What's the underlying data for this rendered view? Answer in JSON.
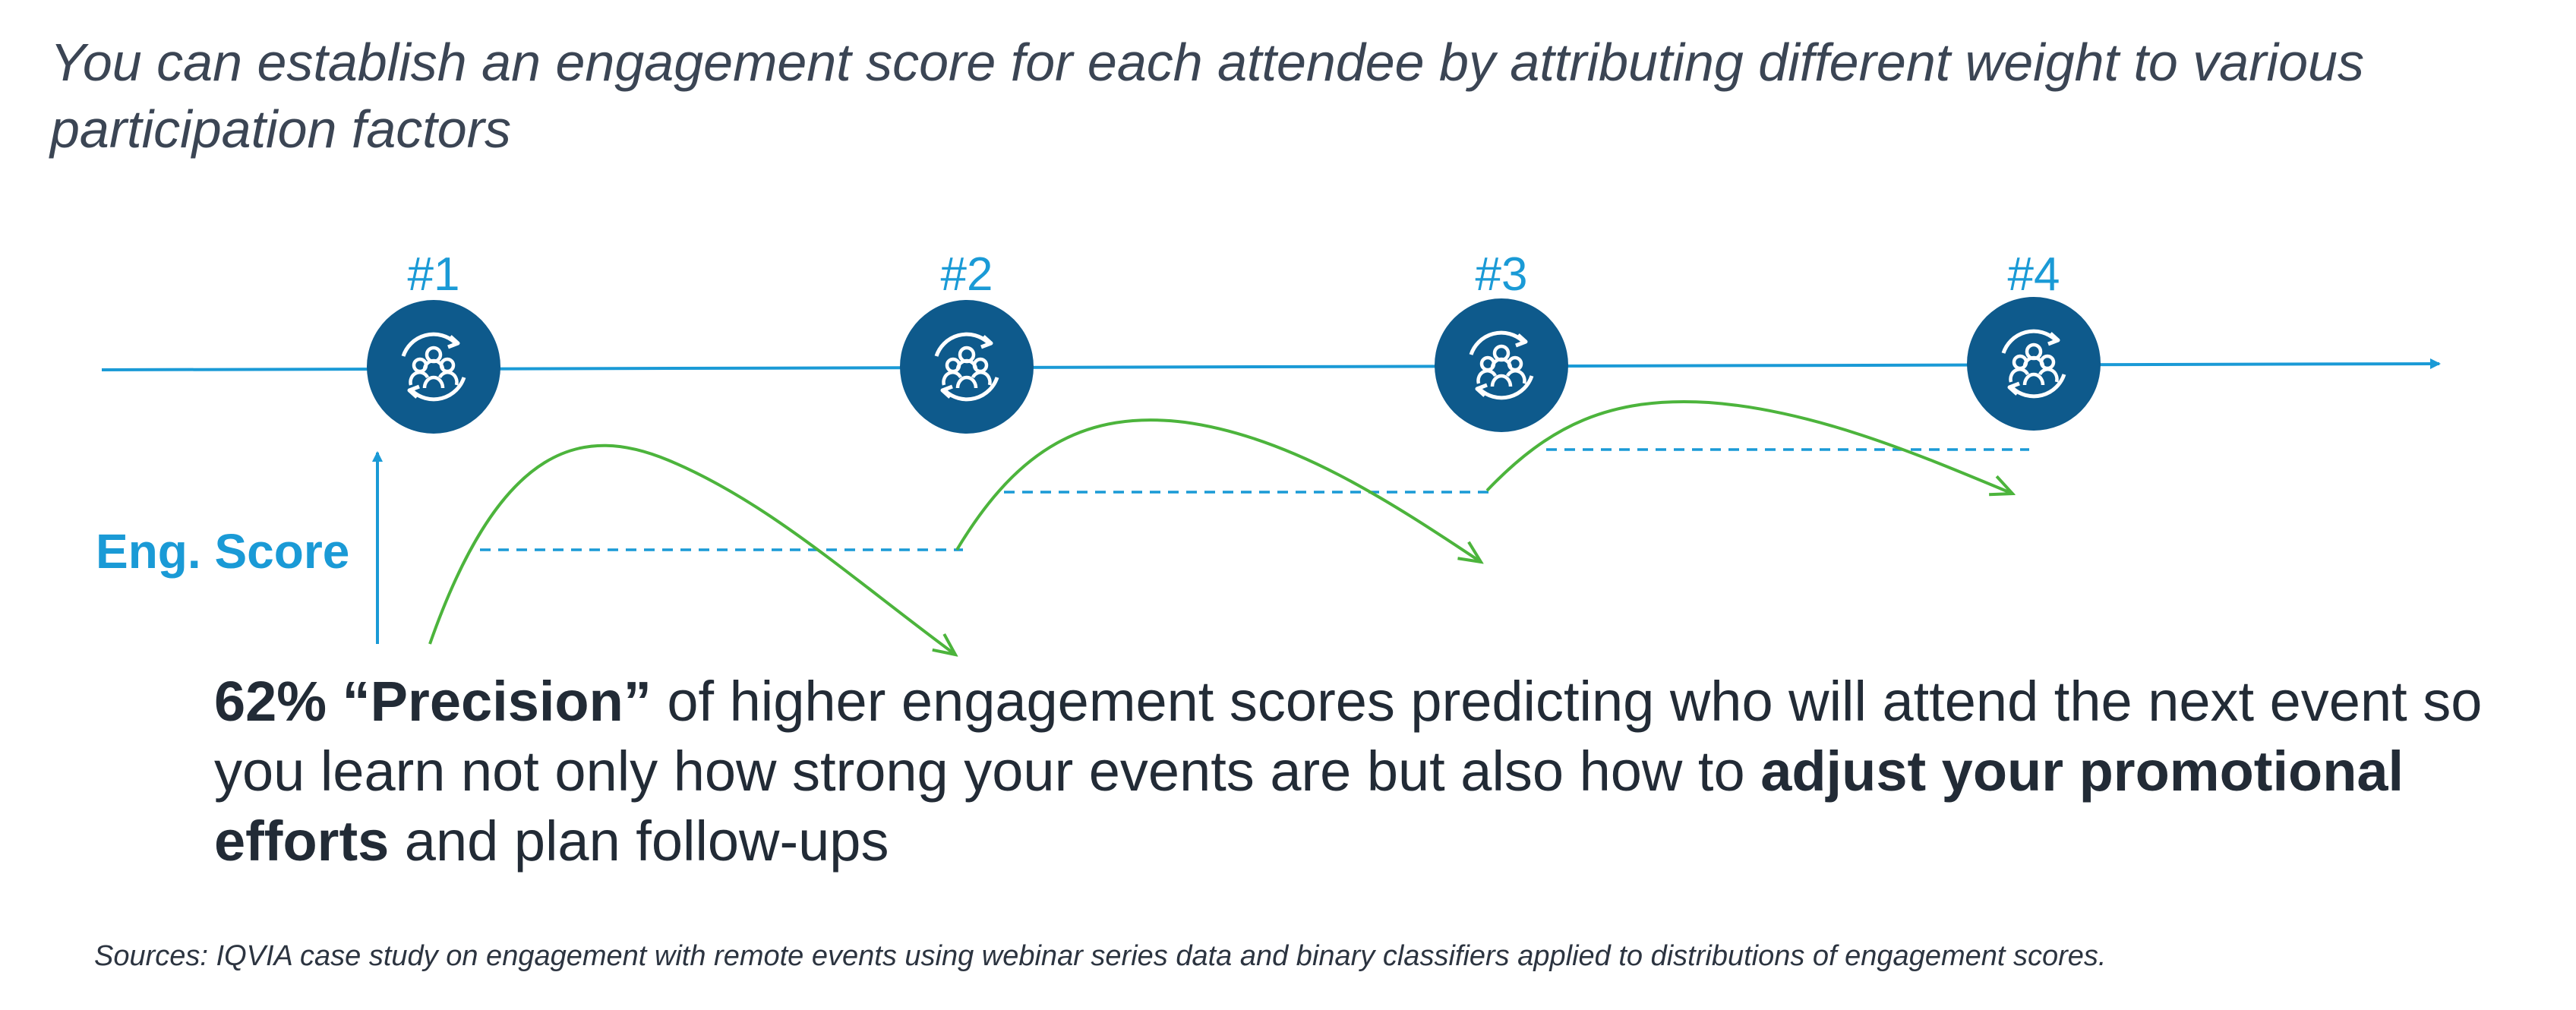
{
  "title": "You can establish an engagement score for each attendee by attributing different weight to various participation factors",
  "steps": [
    {
      "label": "#1",
      "icon": "people-cycle-icon"
    },
    {
      "label": "#2",
      "icon": "people-cycle-icon"
    },
    {
      "label": "#3",
      "icon": "people-cycle-icon"
    },
    {
      "label": "#4",
      "icon": "people-cycle-icon"
    }
  ],
  "axis_label": "Eng. Score",
  "body": {
    "bold_1": "62% “Precision”",
    "text_1": " of higher engagement scores predicting who will attend the next event so you learn not only how strong your events are but also how to ",
    "bold_2": "adjust your promotional efforts",
    "text_2": " and plan follow-ups"
  },
  "sources": "Sources: IQVIA case study on engagement with remote events using webinar series data and binary classifiers applied to distributions of engagement scores.",
  "colors": {
    "timeline": "#1a9ad6",
    "node_fill": "#0e5a8c",
    "curve": "#4cb43c",
    "dashed": "#1a9ad6",
    "text": "#222b36"
  }
}
